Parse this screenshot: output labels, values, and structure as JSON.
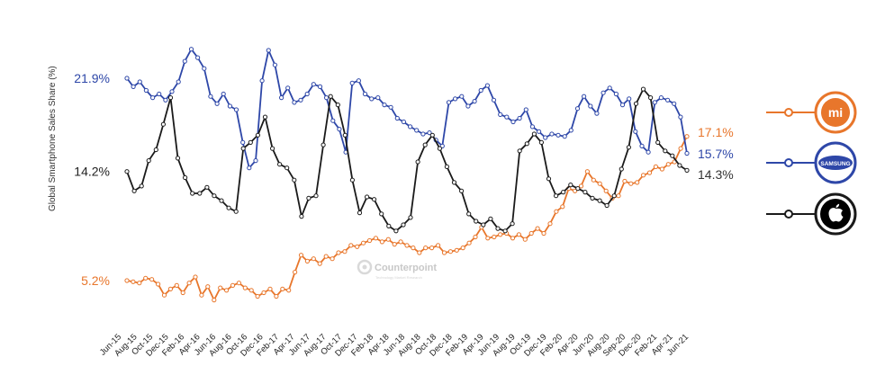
{
  "chart_data": {
    "type": "line",
    "ylabel": "Global Smartphone Sales Share (%)",
    "watermark": "Counterpoint",
    "x_tick_labels": [
      "Jun-15",
      "Aug-15",
      "Oct-15",
      "Dec-15",
      "Feb-16",
      "Apr-16",
      "Jun-16",
      "Aug-16",
      "Oct-16",
      "Dec-16",
      "Feb-17",
      "Apr-17",
      "Jun-17",
      "Aug-17",
      "Oct-17",
      "Dec-17",
      "Feb-18",
      "Apr-18",
      "Jun-18",
      "Aug-18",
      "Oct-18",
      "Dec-18",
      "Feb-19",
      "Apr-19",
      "Jun-19",
      "Aug-19",
      "Oct-19",
      "Dec-19",
      "Feb-20",
      "Apr-20",
      "Jun-20",
      "Aug-20",
      "Sep-20",
      "Dec-20",
      "Feb-21",
      "Apr-21",
      "Jun-21"
    ],
    "series": [
      {
        "key": "xiaomi",
        "color": "#e8762b",
        "start_label": "5.2%",
        "end_label": "17.1%",
        "icon": "xiaomi-logo-icon",
        "logo_text": "mi",
        "values": [
          5.2,
          5.1,
          5.0,
          5.4,
          5.3,
          4.9,
          4.0,
          4.5,
          4.8,
          4.2,
          5.0,
          5.5,
          4.0,
          4.7,
          3.6,
          4.6,
          4.4,
          4.8,
          5.0,
          4.6,
          4.4,
          3.9,
          4.2,
          4.5,
          3.9,
          4.5,
          4.4,
          5.9,
          7.3,
          6.8,
          7.0,
          6.6,
          7.2,
          7.0,
          7.5,
          7.6,
          8.1,
          8.0,
          8.3,
          8.5,
          8.7,
          8.4,
          8.6,
          8.2,
          8.4,
          8.1,
          7.9,
          7.5,
          7.9,
          7.9,
          8.1,
          7.5,
          7.6,
          7.7,
          7.9,
          8.3,
          8.8,
          9.6,
          8.7,
          8.8,
          9.0,
          9.1,
          8.7,
          9.0,
          8.6,
          9.1,
          9.5,
          9.1,
          9.9,
          10.9,
          11.3,
          12.8,
          12.6,
          13.0,
          14.2,
          13.5,
          13.2,
          12.6,
          12.0,
          12.2,
          13.4,
          13.2,
          13.3,
          13.9,
          14.1,
          14.6,
          14.4,
          14.8,
          15.0,
          16.1,
          17.1
        ]
      },
      {
        "key": "samsung",
        "color": "#2e47a8",
        "start_label": "21.9%",
        "end_label": "15.7%",
        "icon": "samsung-logo-icon",
        "logo_text": "SAMSUNG",
        "values": [
          21.9,
          21.2,
          21.6,
          20.9,
          20.3,
          20.6,
          20.1,
          20.8,
          21.6,
          23.3,
          24.3,
          23.6,
          22.7,
          20.4,
          19.8,
          20.6,
          19.6,
          19.3,
          16.6,
          14.5,
          15.1,
          21.7,
          24.2,
          23.0,
          20.3,
          21.1,
          19.9,
          20.1,
          20.6,
          21.4,
          21.2,
          20.3,
          18.4,
          17.7,
          15.8,
          21.5,
          21.7,
          20.6,
          20.2,
          20.3,
          19.7,
          19.5,
          18.6,
          18.3,
          17.9,
          17.6,
          17.3,
          17.4,
          16.8,
          16.3,
          19.9,
          20.2,
          20.4,
          19.6,
          20.0,
          20.9,
          21.3,
          20.1,
          18.9,
          18.7,
          18.3,
          18.6,
          19.3,
          17.9,
          17.5,
          17.0,
          17.3,
          17.2,
          17.1,
          17.6,
          19.4,
          20.4,
          19.6,
          19.0,
          20.7,
          21.1,
          20.6,
          19.7,
          20.2,
          17.5,
          16.3,
          15.8,
          19.9,
          20.3,
          20.1,
          19.8,
          18.7,
          15.7
        ]
      },
      {
        "key": "apple",
        "color": "#1a1a1a",
        "start_label": "14.2%",
        "end_label": "14.3%",
        "icon": "apple-logo-icon",
        "logo_text": "",
        "values": [
          14.2,
          12.6,
          13.0,
          15.1,
          16.0,
          18.1,
          20.3,
          15.3,
          13.7,
          12.4,
          12.4,
          12.9,
          12.2,
          11.8,
          11.2,
          10.9,
          16.1,
          16.6,
          17.2,
          18.7,
          16.1,
          14.8,
          14.5,
          13.5,
          10.5,
          12.0,
          12.2,
          16.4,
          20.4,
          19.7,
          17.2,
          13.5,
          10.8,
          12.1,
          11.9,
          10.7,
          9.7,
          9.3,
          9.8,
          10.4,
          15.0,
          16.4,
          17.2,
          16.1,
          14.6,
          13.3,
          12.6,
          10.7,
          10.1,
          9.8,
          10.3,
          9.5,
          9.3,
          9.9,
          15.9,
          16.5,
          17.3,
          16.6,
          13.6,
          12.2,
          12.5,
          13.1,
          12.8,
          12.5,
          12.0,
          11.8,
          11.4,
          12.2,
          14.4,
          16.2,
          19.8,
          21.0,
          20.3,
          16.6,
          15.9,
          15.5,
          14.7,
          14.3
        ]
      }
    ]
  }
}
